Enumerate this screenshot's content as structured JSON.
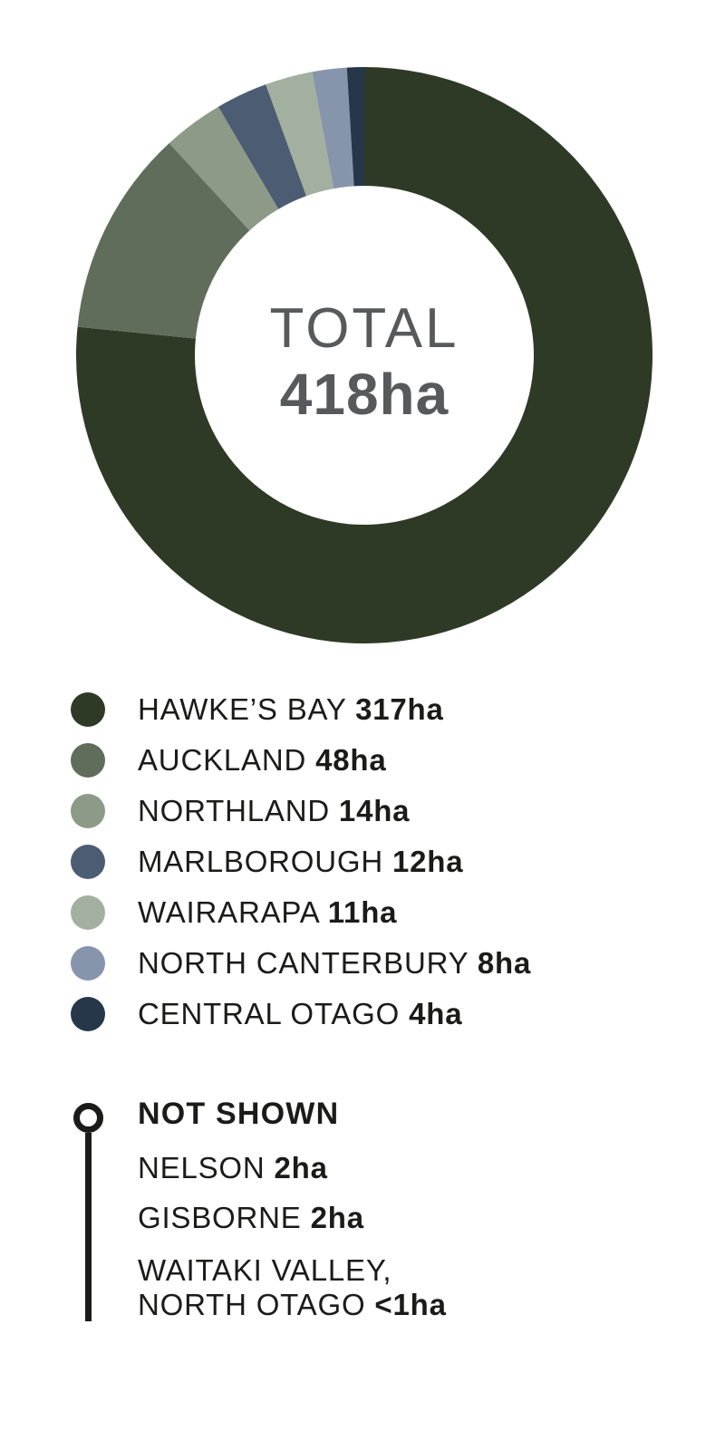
{
  "chart_data": {
    "type": "pie",
    "variant": "donut",
    "center_label": "TOTAL",
    "center_value": "418ha",
    "unit": "ha",
    "start_angle": "12 o'clock, clockwise",
    "series": [
      {
        "name": "HAWKE’S BAY",
        "value": 317,
        "display": "317ha",
        "color": "#2E3A26"
      },
      {
        "name": "AUCKLAND",
        "value": 48,
        "display": "48ha",
        "color": "#606D5A"
      },
      {
        "name": "NORTHLAND",
        "value": 14,
        "display": "14ha",
        "color": "#8D9A88"
      },
      {
        "name": "MARLBOROUGH",
        "value": 12,
        "display": "12ha",
        "color": "#4C5C73"
      },
      {
        "name": "WAIRARAPA",
        "value": 11,
        "display": "11ha",
        "color": "#A3B0A0"
      },
      {
        "name": "NORTH CANTERBURY",
        "value": 8,
        "display": "8ha",
        "color": "#8795AC"
      },
      {
        "name": "CENTRAL OTAGO",
        "value": 4,
        "display": "4ha",
        "color": "#263749"
      }
    ],
    "not_shown": {
      "header": "NOT SHOWN",
      "items": [
        {
          "lines": [
            "NELSON"
          ],
          "display": "2ha"
        },
        {
          "lines": [
            "GISBORNE"
          ],
          "display": "2ha"
        },
        {
          "lines": [
            "WAITAKI VALLEY,",
            "NORTH OTAGO"
          ],
          "display": "<1ha"
        }
      ]
    },
    "legend_position": "below chart, left aligned",
    "text_color": "#1B1B1A",
    "center_text_color": "#58595B"
  }
}
